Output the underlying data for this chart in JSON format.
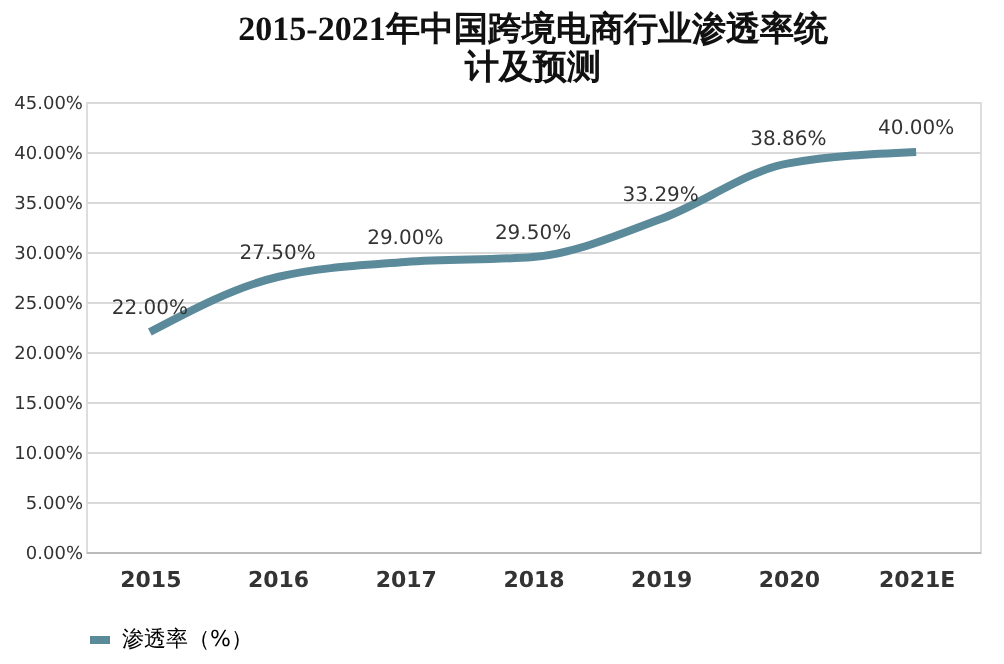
{
  "chart_data": {
    "type": "line",
    "title": "2015-2021年中国跨境电商行业渗透率统计及预测",
    "categories": [
      "2015",
      "2016",
      "2017",
      "2018",
      "2019",
      "2020",
      "2021E"
    ],
    "series": [
      {
        "name": "渗透率（%）",
        "color": "#5b8a9a",
        "values": [
          22,
          27.5,
          29,
          29.5,
          33.29,
          38.86,
          40
        ],
        "value_labels": [
          "22.00%",
          "27.50%",
          "29.00%",
          "29.50%",
          "33.29%",
          "38.86%",
          "40.00%"
        ]
      }
    ],
    "ylim": [
      0,
      45
    ],
    "yticks": [
      {
        "value": 0,
        "label": "0.00%"
      },
      {
        "value": 5,
        "label": "5.00%"
      },
      {
        "value": 10,
        "label": "10.00%"
      },
      {
        "value": 15,
        "label": "15.00%"
      },
      {
        "value": 20,
        "label": "20.00%"
      },
      {
        "value": 25,
        "label": "25.00%"
      },
      {
        "value": 30,
        "label": "30.00%"
      },
      {
        "value": 35,
        "label": "35.00%"
      },
      {
        "value": 40,
        "label": "40.00%"
      },
      {
        "value": 45,
        "label": "45.00%"
      }
    ],
    "grid": "y",
    "legend": "bottom",
    "marker": "none",
    "line_style": "solid"
  }
}
